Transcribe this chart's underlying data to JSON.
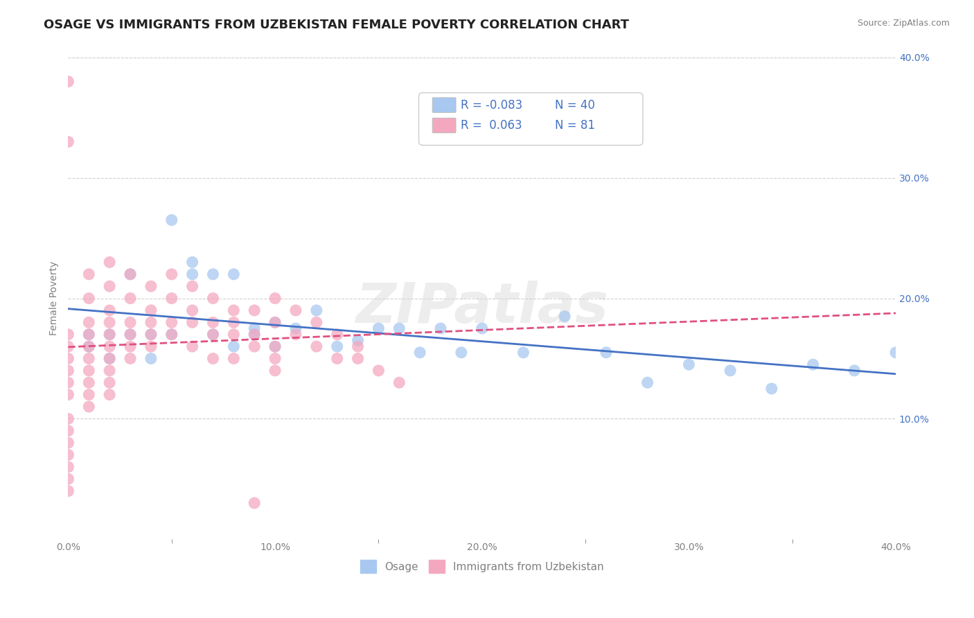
{
  "title": "OSAGE VS IMMIGRANTS FROM UZBEKISTAN FEMALE POVERTY CORRELATION CHART",
  "source": "Source: ZipAtlas.com",
  "ylabel": "Female Poverty",
  "xlim": [
    0,
    0.4
  ],
  "ylim": [
    0,
    0.4
  ],
  "xtick_labels": [
    "0.0%",
    "",
    "10.0%",
    "",
    "20.0%",
    "",
    "30.0%",
    "",
    "40.0%"
  ],
  "xtick_vals": [
    0.0,
    0.05,
    0.1,
    0.15,
    0.2,
    0.25,
    0.3,
    0.35,
    0.4
  ],
  "ytick_labels": [
    "10.0%",
    "20.0%",
    "30.0%",
    "40.0%"
  ],
  "ytick_vals": [
    0.1,
    0.2,
    0.3,
    0.4
  ],
  "watermark": "ZIPatlas",
  "series": [
    {
      "name": "Osage",
      "color": "#a8c8f0",
      "line_color": "#4472c4",
      "line_style": "solid",
      "R": -0.083,
      "N": 40,
      "x": [
        0.01,
        0.01,
        0.02,
        0.02,
        0.03,
        0.03,
        0.04,
        0.04,
        0.05,
        0.05,
        0.06,
        0.06,
        0.07,
        0.07,
        0.08,
        0.08,
        0.09,
        0.09,
        0.1,
        0.1,
        0.11,
        0.12,
        0.13,
        0.14,
        0.15,
        0.16,
        0.17,
        0.18,
        0.19,
        0.2,
        0.22,
        0.24,
        0.26,
        0.28,
        0.3,
        0.32,
        0.34,
        0.36,
        0.38,
        0.4
      ],
      "y": [
        0.17,
        0.16,
        0.15,
        0.17,
        0.22,
        0.17,
        0.15,
        0.17,
        0.265,
        0.17,
        0.22,
        0.23,
        0.17,
        0.22,
        0.16,
        0.22,
        0.17,
        0.175,
        0.16,
        0.18,
        0.175,
        0.19,
        0.16,
        0.165,
        0.175,
        0.175,
        0.155,
        0.175,
        0.155,
        0.175,
        0.155,
        0.185,
        0.155,
        0.13,
        0.145,
        0.14,
        0.125,
        0.145,
        0.14,
        0.155
      ]
    },
    {
      "name": "Immigrants from Uzbekistan",
      "color": "#f4a8c0",
      "line_color": "#e05080",
      "line_style": "dashed",
      "R": 0.063,
      "N": 81,
      "x": [
        0.0,
        0.0,
        0.0,
        0.0,
        0.0,
        0.0,
        0.0,
        0.0,
        0.0,
        0.0,
        0.0,
        0.0,
        0.0,
        0.0,
        0.0,
        0.01,
        0.01,
        0.01,
        0.01,
        0.01,
        0.01,
        0.01,
        0.01,
        0.01,
        0.01,
        0.02,
        0.02,
        0.02,
        0.02,
        0.02,
        0.02,
        0.02,
        0.02,
        0.02,
        0.02,
        0.03,
        0.03,
        0.03,
        0.03,
        0.03,
        0.03,
        0.04,
        0.04,
        0.04,
        0.04,
        0.04,
        0.05,
        0.05,
        0.05,
        0.05,
        0.06,
        0.06,
        0.06,
        0.06,
        0.07,
        0.07,
        0.07,
        0.07,
        0.08,
        0.08,
        0.08,
        0.08,
        0.09,
        0.09,
        0.09,
        0.1,
        0.1,
        0.1,
        0.1,
        0.1,
        0.11,
        0.11,
        0.12,
        0.12,
        0.13,
        0.13,
        0.14,
        0.14,
        0.15,
        0.16,
        0.09
      ],
      "y": [
        0.38,
        0.33,
        0.17,
        0.16,
        0.15,
        0.14,
        0.13,
        0.12,
        0.1,
        0.09,
        0.08,
        0.07,
        0.06,
        0.05,
        0.04,
        0.22,
        0.2,
        0.18,
        0.17,
        0.16,
        0.15,
        0.14,
        0.13,
        0.12,
        0.11,
        0.23,
        0.21,
        0.19,
        0.18,
        0.17,
        0.16,
        0.15,
        0.14,
        0.13,
        0.12,
        0.22,
        0.2,
        0.18,
        0.17,
        0.16,
        0.15,
        0.21,
        0.19,
        0.18,
        0.17,
        0.16,
        0.22,
        0.2,
        0.18,
        0.17,
        0.21,
        0.19,
        0.18,
        0.16,
        0.2,
        0.18,
        0.17,
        0.15,
        0.19,
        0.18,
        0.17,
        0.15,
        0.19,
        0.17,
        0.16,
        0.2,
        0.18,
        0.16,
        0.15,
        0.14,
        0.19,
        0.17,
        0.18,
        0.16,
        0.17,
        0.15,
        0.16,
        0.15,
        0.14,
        0.13,
        0.03
      ]
    }
  ],
  "legend_data": [
    {
      "color": "#a8c8f0",
      "R_text": "-0.083",
      "N_text": "40"
    },
    {
      "color": "#f4a8c0",
      "R_text": " 0.063",
      "N_text": "81"
    }
  ],
  "title_fontsize": 13,
  "axis_label_fontsize": 10,
  "tick_fontsize": 10,
  "legend_fontsize": 12,
  "background_color": "#ffffff",
  "grid_color": "#d0d0d0"
}
